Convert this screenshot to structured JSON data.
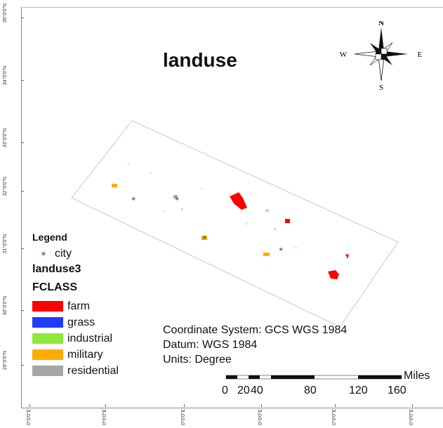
{
  "title": "landuse",
  "compass": {
    "n": "N",
    "s": "S",
    "e": "E",
    "w": "W"
  },
  "latitude_labels": [
    "35°0'0\"N",
    "34°0'0\"N",
    "33°0'0\"N",
    "32°0'0\"N",
    "31°0'0\"N",
    "30°0'0\"N",
    "29°0'0\"N"
  ],
  "longitude_labels": [
    "0°0'0\"E",
    "0°0'0\"E",
    "0°0'0\"E",
    "0°0'0\"E",
    "0°0'0\"E",
    "0°0'0\"E"
  ],
  "legend": {
    "heading": "Legend",
    "city_label": "city",
    "layer_name": "landuse3",
    "field_name": "FCLASS",
    "classes": [
      {
        "label": "farm",
        "color": "#ff0000"
      },
      {
        "label": "grass",
        "color": "#1f3df5"
      },
      {
        "label": "industrial",
        "color": "#8ee83a"
      },
      {
        "label": "military",
        "color": "#ffab00"
      },
      {
        "label": "residential",
        "color": "#a6a6a6"
      }
    ]
  },
  "coordinate_info": {
    "system": "Coordinate System: GCS WGS 1984",
    "datum": "Datum: WGS 1984",
    "units": "Units: Degree"
  },
  "scale_bar": {
    "labels": [
      "0",
      "20",
      "40",
      "80",
      "120",
      "160"
    ],
    "units": "Miles"
  }
}
